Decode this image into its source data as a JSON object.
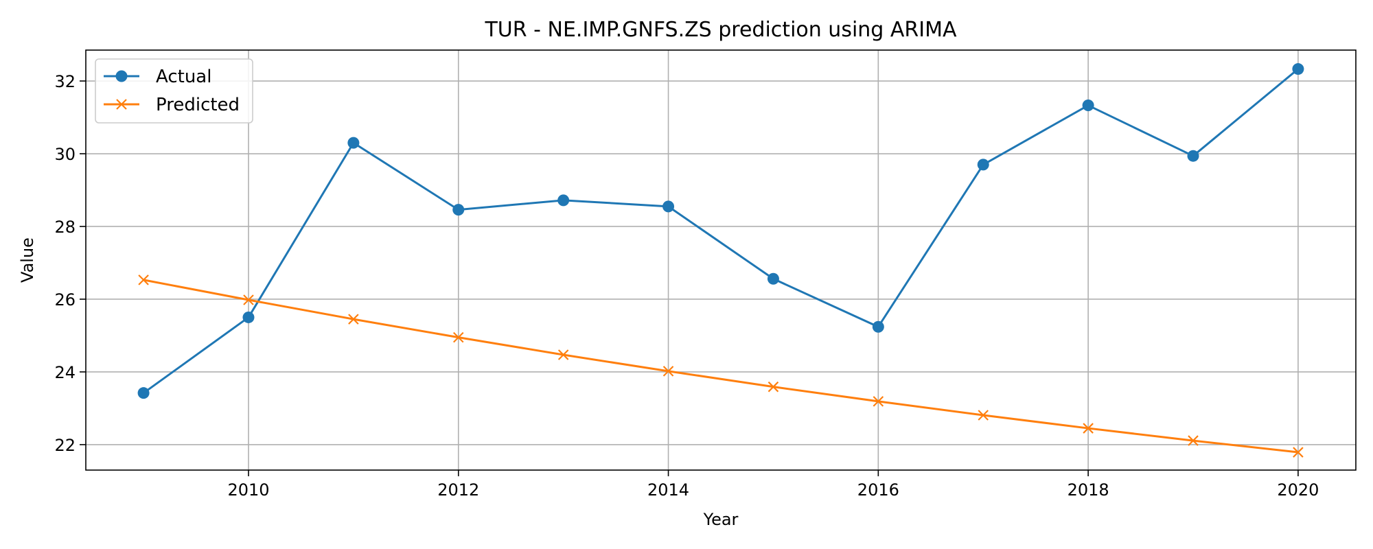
{
  "chart_data": {
    "type": "line",
    "title": "TUR - NE.IMP.GNFS.ZS prediction using ARIMA",
    "xlabel": "Year",
    "ylabel": "Value",
    "x": [
      2009,
      2010,
      2011,
      2012,
      2013,
      2014,
      2015,
      2016,
      2017,
      2018,
      2019,
      2020
    ],
    "xticks": [
      2010,
      2012,
      2014,
      2016,
      2018,
      2020
    ],
    "yticks": [
      22,
      24,
      26,
      28,
      30,
      32
    ],
    "xlim": [
      2008.45,
      2020.55
    ],
    "ylim": [
      21.3,
      32.85
    ],
    "grid": true,
    "legend_position": "top-left",
    "series": [
      {
        "name": "Actual",
        "color": "#1f77b4",
        "marker": "circle",
        "values": [
          23.42,
          25.5,
          30.3,
          28.46,
          28.72,
          28.55,
          26.56,
          25.24,
          29.7,
          31.33,
          29.94,
          32.33
        ]
      },
      {
        "name": "Predicted",
        "color": "#ff7f0e",
        "marker": "x",
        "values": [
          26.53,
          25.98,
          25.45,
          24.95,
          24.47,
          24.02,
          23.59,
          23.19,
          22.81,
          22.45,
          22.11,
          21.79
        ]
      }
    ]
  }
}
